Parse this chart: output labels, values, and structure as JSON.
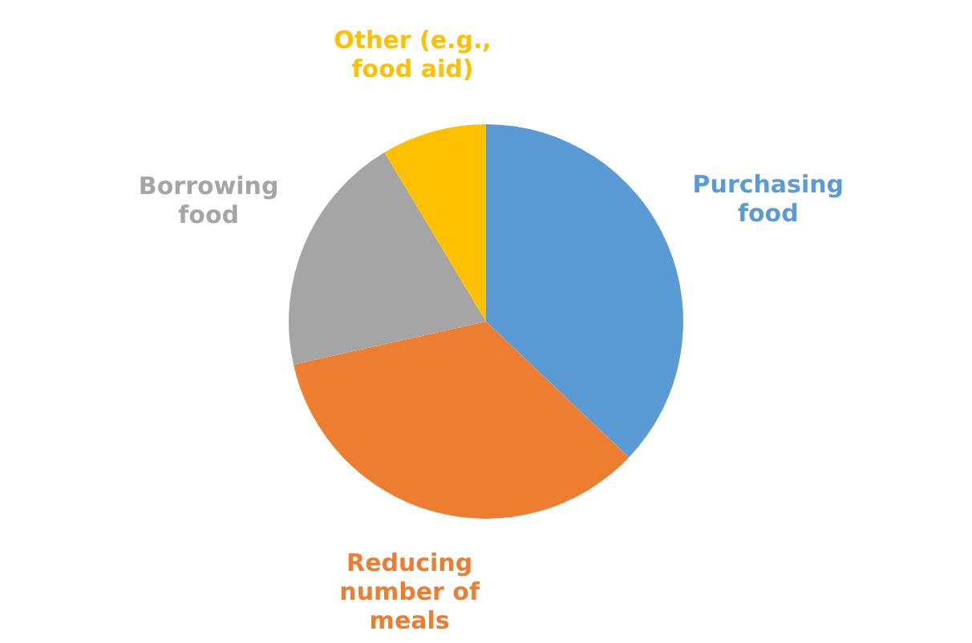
{
  "chart_data": {
    "type": "pie",
    "categories": [
      "Purchasing food",
      "Reducing number of meals",
      "Borrowing food",
      "Other (e.g., food aid)"
    ],
    "values": [
      37.1,
      34.4,
      19.9,
      8.6
    ],
    "colors": [
      "#5b9bd5",
      "#ed7d31",
      "#a5a5a5",
      "#ffc000"
    ],
    "legend": false
  }
}
